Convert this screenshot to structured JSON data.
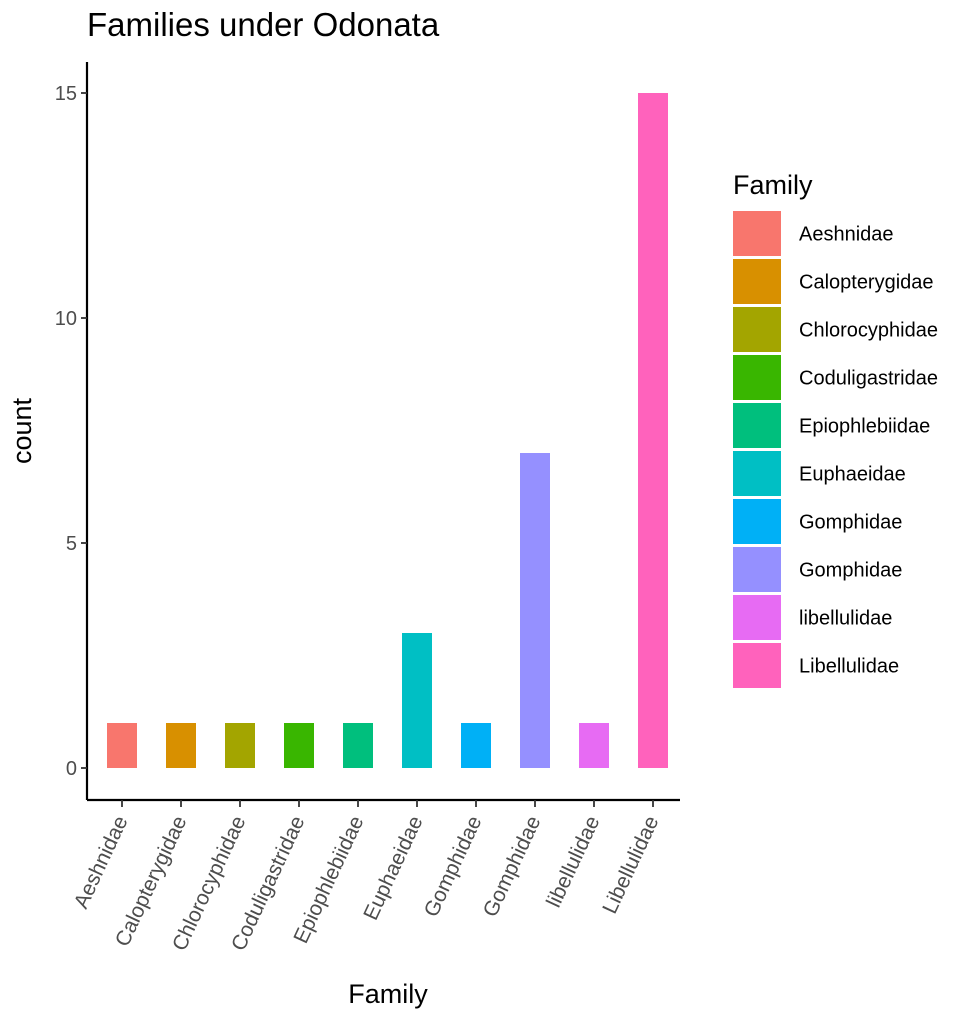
{
  "chart_data": {
    "type": "bar",
    "title": "Families under Odonata",
    "xlabel": "Family",
    "ylabel": "count",
    "categories": [
      "Aeshnidae",
      "Calopterygidae",
      "Chlorocyphidae",
      "Coduligastridae",
      "Epiophlebiidae",
      "Euphaeidae",
      "Gomphidae",
      "Gomphidae",
      "libellulidae",
      "Libellulidae"
    ],
    "values": [
      1,
      1,
      1,
      1,
      1,
      3,
      1,
      7,
      1,
      15
    ],
    "colors": [
      "#F8766D",
      "#D89000",
      "#A3A500",
      "#39B600",
      "#00BF7D",
      "#00BFC4",
      "#00B0F6",
      "#9590FF",
      "#E76BF3",
      "#FF62BC"
    ],
    "ylim": [
      0,
      15.7
    ],
    "yticks": [
      0,
      5,
      10,
      15
    ],
    "grid": false,
    "legend": {
      "title": "Family",
      "position": "right",
      "entries": [
        "Aeshnidae",
        "Calopterygidae",
        "Chlorocyphidae",
        "Coduligastridae",
        "Epiophlebiidae",
        "Euphaeidae",
        "Gomphidae",
        "Gomphidae",
        "libellulidae",
        "Libellulidae"
      ]
    }
  }
}
